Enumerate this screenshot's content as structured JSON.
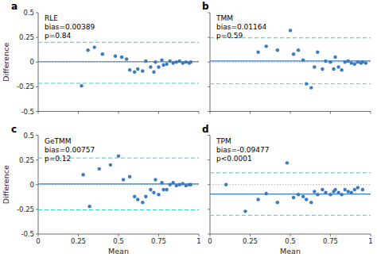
{
  "chart_data": [
    {
      "type": "scatter",
      "panel_label": "a",
      "title": "RLE",
      "annotations": [
        "bias=0.00389",
        "p=0.84"
      ],
      "y_label": "Difference",
      "tick_labels": "y",
      "x": [
        0.27,
        0.31,
        0.35,
        0.4,
        0.48,
        0.52,
        0.55,
        0.57,
        0.6,
        0.62,
        0.65,
        0.67,
        0.7,
        0.72,
        0.73,
        0.75,
        0.77,
        0.78,
        0.8,
        0.82,
        0.84,
        0.86,
        0.88,
        0.9,
        0.92,
        0.94,
        0.95
      ],
      "values": [
        -0.24,
        0.12,
        0.15,
        0.08,
        0.06,
        0.05,
        0.03,
        -0.08,
        -0.1,
        -0.07,
        -0.09,
        0.01,
        -0.05,
        -0.1,
        0.0,
        -0.05,
        0.02,
        -0.03,
        -0.02,
        0.01,
        -0.01,
        0.0,
        0.01,
        -0.01,
        0.0,
        -0.01,
        0.0
      ],
      "color": "#3a7abf",
      "reference_lines": [
        {
          "value": 0,
          "color": "#aaaaaa",
          "line_style": "dotted"
        },
        {
          "value": 0.00389,
          "color": "#3a7abf",
          "line_style": "solid"
        },
        {
          "value": 0.2,
          "color": "#40c8c8",
          "line_style": "dashed"
        },
        {
          "value": -0.215,
          "color": "#40c8c8",
          "line_style": "dashed"
        }
      ],
      "xlim": [
        0,
        1
      ],
      "ylim": [
        -0.5,
        0.5
      ],
      "xticks": [
        0,
        0.25,
        0.5,
        0.75,
        1
      ],
      "yticks": [
        -0.5,
        -0.25,
        0,
        0.25,
        0.5
      ]
    },
    {
      "type": "scatter",
      "panel_label": "b",
      "title": "TMM",
      "annotations": [
        "bias=0.01164",
        "p=0.59"
      ],
      "tick_labels": false,
      "x": [
        0.3,
        0.35,
        0.42,
        0.5,
        0.52,
        0.55,
        0.58,
        0.6,
        0.63,
        0.65,
        0.67,
        0.7,
        0.72,
        0.75,
        0.77,
        0.78,
        0.8,
        0.82,
        0.84,
        0.86,
        0.88,
        0.9,
        0.92,
        0.94,
        0.95,
        0.97
      ],
      "values": [
        0.1,
        0.16,
        0.12,
        0.32,
        0.08,
        0.12,
        0.02,
        -0.22,
        -0.26,
        -0.05,
        0.1,
        -0.07,
        0.01,
        0.0,
        -0.07,
        0.05,
        -0.05,
        -0.08,
        0.0,
        0.01,
        -0.01,
        -0.02,
        0.0,
        -0.01,
        0.0,
        -0.01
      ],
      "color": "#3a7abf",
      "reference_lines": [
        {
          "value": 0,
          "color": "#aaaaaa",
          "line_style": "dotted"
        },
        {
          "value": 0.01164,
          "color": "#3a7abf",
          "line_style": "solid"
        },
        {
          "value": 0.245,
          "color": "#40c8c8",
          "line_style": "dashed"
        },
        {
          "value": -0.22,
          "color": "#40c8c8",
          "line_style": "dashed"
        }
      ],
      "xlim": [
        0,
        1
      ],
      "ylim": [
        -0.5,
        0.5
      ],
      "xticks": [
        0,
        0.25,
        0.5,
        0.75,
        1
      ],
      "yticks": [
        -0.5,
        -0.25,
        0,
        0.25,
        0.5
      ]
    },
    {
      "type": "scatter",
      "panel_label": "c",
      "title": "GeTMM",
      "annotations": [
        "bias=0.00757",
        "p=0.12"
      ],
      "x_label": "Mean",
      "y_label": "Difference",
      "x": [
        0.28,
        0.32,
        0.38,
        0.45,
        0.5,
        0.53,
        0.57,
        0.6,
        0.62,
        0.65,
        0.67,
        0.7,
        0.72,
        0.73,
        0.75,
        0.77,
        0.78,
        0.8,
        0.82,
        0.84,
        0.86,
        0.88,
        0.9,
        0.92,
        0.94,
        0.95
      ],
      "values": [
        0.1,
        -0.22,
        0.16,
        0.2,
        0.29,
        0.05,
        0.08,
        -0.12,
        -0.15,
        -0.18,
        -0.12,
        -0.05,
        -0.08,
        0.05,
        -0.1,
        0.02,
        -0.05,
        -0.05,
        0.0,
        0.02,
        -0.01,
        0.0,
        0.01,
        -0.01,
        0.0,
        0.0
      ],
      "color": "#3a7abf",
      "reference_lines": [
        {
          "value": 0,
          "color": "#aaaaaa",
          "line_style": "dotted"
        },
        {
          "value": 0.00757,
          "color": "#3a7abf",
          "line_style": "solid"
        },
        {
          "value": 0.27,
          "color": "#40c8c8",
          "line_style": "dashed"
        },
        {
          "value": -0.255,
          "color": "#40c8c8",
          "line_style": "dashed"
        }
      ],
      "xlim": [
        0,
        1
      ],
      "ylim": [
        -0.5,
        0.5
      ],
      "xticks": [
        0,
        0.25,
        0.5,
        0.75,
        1
      ],
      "yticks": [
        -0.5,
        -0.25,
        0,
        0.25,
        0.5
      ]
    },
    {
      "type": "scatter",
      "panel_label": "d",
      "title": "TPM",
      "annotations": [
        "bias=-0.09477",
        "p<0.0001"
      ],
      "x_label": "Mean",
      "tick_labels": "x",
      "x": [
        0.1,
        0.22,
        0.3,
        0.35,
        0.42,
        0.48,
        0.52,
        0.55,
        0.58,
        0.6,
        0.63,
        0.65,
        0.67,
        0.7,
        0.72,
        0.75,
        0.77,
        0.78,
        0.8,
        0.82,
        0.84,
        0.86,
        0.88,
        0.9,
        0.92,
        0.95
      ],
      "values": [
        0.0,
        -0.27,
        -0.15,
        -0.09,
        -0.18,
        0.22,
        -0.13,
        -0.1,
        -0.12,
        -0.15,
        -0.18,
        -0.07,
        -0.1,
        -0.05,
        -0.08,
        -0.1,
        -0.07,
        -0.05,
        -0.08,
        -0.1,
        -0.05,
        -0.07,
        -0.08,
        -0.05,
        -0.03,
        -0.05
      ],
      "color": "#3a7abf",
      "reference_lines": [
        {
          "value": 0,
          "color": "#aaaaaa",
          "line_style": "dotted"
        },
        {
          "value": -0.09477,
          "color": "#3a7abf",
          "line_style": "solid"
        },
        {
          "value": 0.12,
          "color": "#40c8c8",
          "line_style": "dashed"
        },
        {
          "value": -0.31,
          "color": "#40c8c8",
          "line_style": "dashed"
        }
      ],
      "xlim": [
        0,
        1
      ],
      "ylim": [
        -0.5,
        0.5
      ],
      "xticks": [
        0,
        0.25,
        0.5,
        0.75,
        1
      ],
      "yticks": [
        -0.5,
        -0.25,
        0,
        0.25,
        0.5
      ]
    }
  ]
}
